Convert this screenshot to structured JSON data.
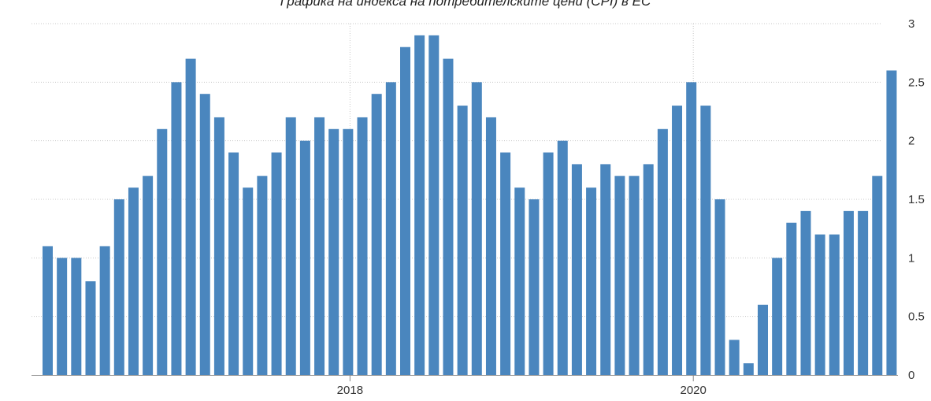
{
  "chart_data": {
    "type": "bar",
    "title": "Графика на индекса на потребителските цени (CPI) в ЕС",
    "xlabel": "",
    "ylabel": "",
    "ylim": [
      0,
      3
    ],
    "y_ticks": [
      "0",
      "0.5",
      "1",
      "1.5",
      "2",
      "2.5",
      "3"
    ],
    "x_tick_labels": [
      {
        "label": "2018",
        "at_index": 21
      },
      {
        "label": "2020",
        "at_index": 45
      }
    ],
    "grid": "horizontal dotted lines, vertical dotted lines at labeled years",
    "y_axis_side": "right",
    "legend": "none",
    "bar_color": "#4a86be",
    "values": [
      1.1,
      1.0,
      1.0,
      0.8,
      1.1,
      1.5,
      1.6,
      1.7,
      2.1,
      2.5,
      2.7,
      2.4,
      2.2,
      1.9,
      1.6,
      1.7,
      1.9,
      2.2,
      2.0,
      2.2,
      2.1,
      2.1,
      2.2,
      2.4,
      2.5,
      2.8,
      2.9,
      2.9,
      2.7,
      2.3,
      2.5,
      2.2,
      1.9,
      1.6,
      1.5,
      1.9,
      2.0,
      1.8,
      1.6,
      1.8,
      1.7,
      1.7,
      1.8,
      2.1,
      2.3,
      2.5,
      2.3,
      1.5,
      0.3,
      0.1,
      0.6,
      1.0,
      1.3,
      1.4,
      1.2,
      1.2,
      1.4,
      1.4,
      1.7,
      2.6
    ]
  }
}
